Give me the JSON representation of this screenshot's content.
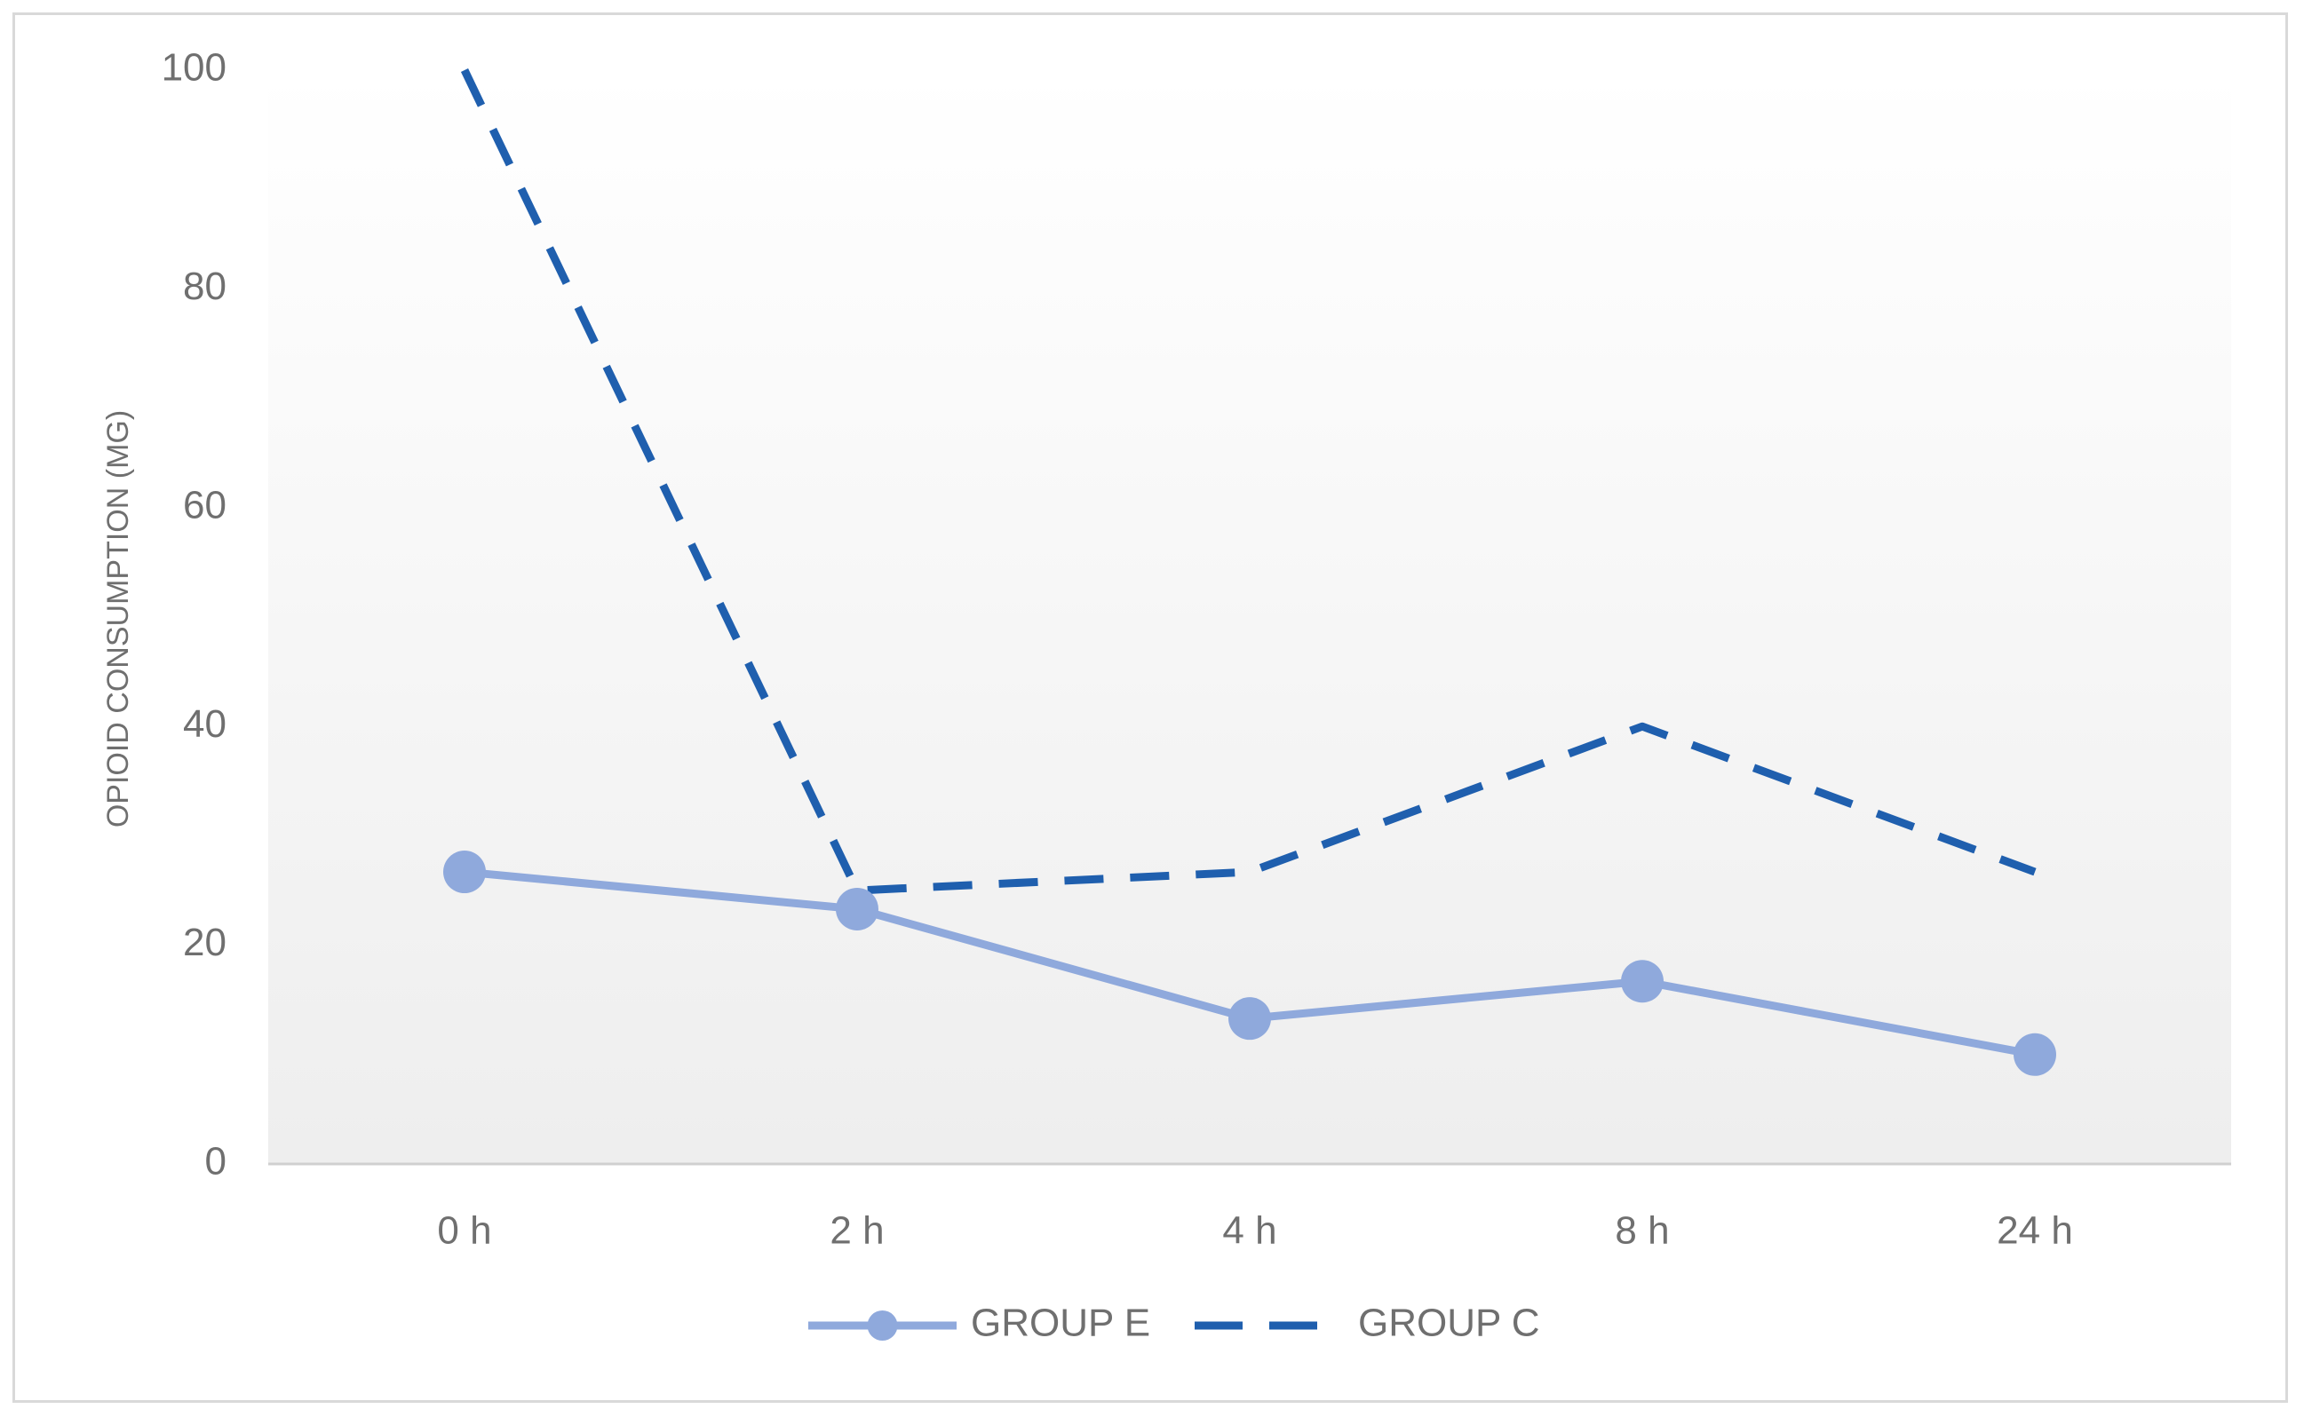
{
  "chart_data": {
    "type": "line",
    "title": "",
    "xlabel": "",
    "ylabel": "OPIOID CONSUMPTION (MG)",
    "categories": [
      "0 h",
      "2 h",
      "4 h",
      "8 h",
      "24 h"
    ],
    "ylim": [
      0,
      100
    ],
    "yticks": [
      "0",
      "20",
      "40",
      "60",
      "80",
      "100"
    ],
    "grid": false,
    "legend_position": "bottom",
    "series": [
      {
        "name": "GROUP E",
        "values": [
          26.7,
          23.3,
          13.3,
          16.7,
          10
        ],
        "color": "#8fa9dc",
        "style": "solid-with-markers"
      },
      {
        "name": "GROUP C",
        "values": [
          100,
          25,
          26.7,
          40,
          26.7
        ],
        "color": "#1f5fae",
        "style": "dashed"
      }
    ]
  }
}
